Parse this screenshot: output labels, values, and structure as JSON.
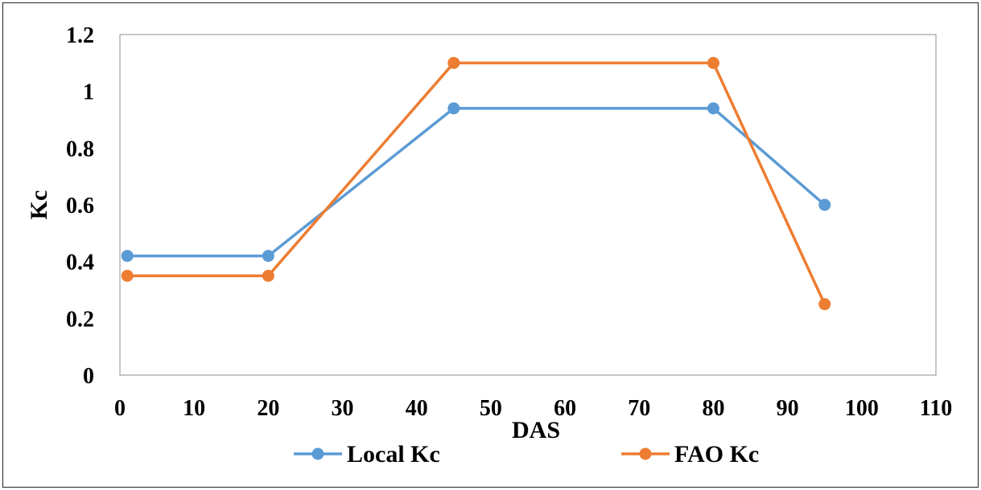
{
  "chart_data": {
    "type": "line",
    "title": "",
    "xlabel": "DAS",
    "ylabel": "Kc",
    "xlim": [
      0,
      110
    ],
    "ylim": [
      0,
      1.2
    ],
    "xticks": [
      "0",
      "10",
      "20",
      "30",
      "40",
      "50",
      "60",
      "70",
      "80",
      "90",
      "100",
      "110"
    ],
    "yticks": [
      "0",
      "0.2",
      "0.4",
      "0.6",
      "0.8",
      "1",
      "1.2"
    ],
    "grid": false,
    "legend_position": "bottom",
    "series": [
      {
        "name": "Local Kc",
        "color": "#5b9bd5",
        "x": [
          1,
          20,
          45,
          80,
          95
        ],
        "y": [
          0.42,
          0.42,
          0.94,
          0.94,
          0.6
        ]
      },
      {
        "name": "FAO Kc",
        "color": "#ed7d31",
        "x": [
          1,
          20,
          45,
          80,
          95
        ],
        "y": [
          0.35,
          0.35,
          1.1,
          1.1,
          0.25
        ]
      }
    ]
  }
}
